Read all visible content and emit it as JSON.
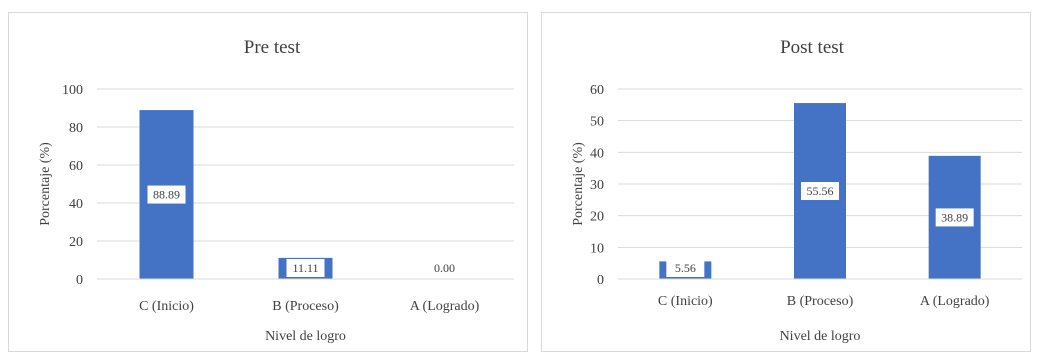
{
  "chart_data": [
    {
      "type": "bar",
      "title": "Pre test",
      "xlabel": "Nivel de logro",
      "ylabel": "Porcentaje (%)",
      "categories": [
        "C (Inicio)",
        "B (Proceso)",
        "A (Logrado)"
      ],
      "values": [
        88.89,
        11.11,
        0.0
      ],
      "data_labels": [
        "88.89",
        "11.11",
        "0.00"
      ],
      "ylim": [
        0,
        100
      ],
      "yticks": [
        0,
        20,
        40,
        60,
        80,
        100
      ],
      "grid": true,
      "bar_color": "#4472c4"
    },
    {
      "type": "bar",
      "title": "Post test",
      "xlabel": "Nivel de logro",
      "ylabel": "Porcentaje (%)",
      "categories": [
        "C (Inicio)",
        "B (Proceso)",
        "A (Logrado)"
      ],
      "values": [
        5.56,
        55.56,
        38.89
      ],
      "data_labels": [
        "5.56",
        "55.56",
        "38.89"
      ],
      "ylim": [
        0,
        60
      ],
      "yticks": [
        0,
        10,
        20,
        30,
        40,
        50,
        60
      ],
      "grid": true,
      "bar_color": "#4472c4"
    }
  ]
}
